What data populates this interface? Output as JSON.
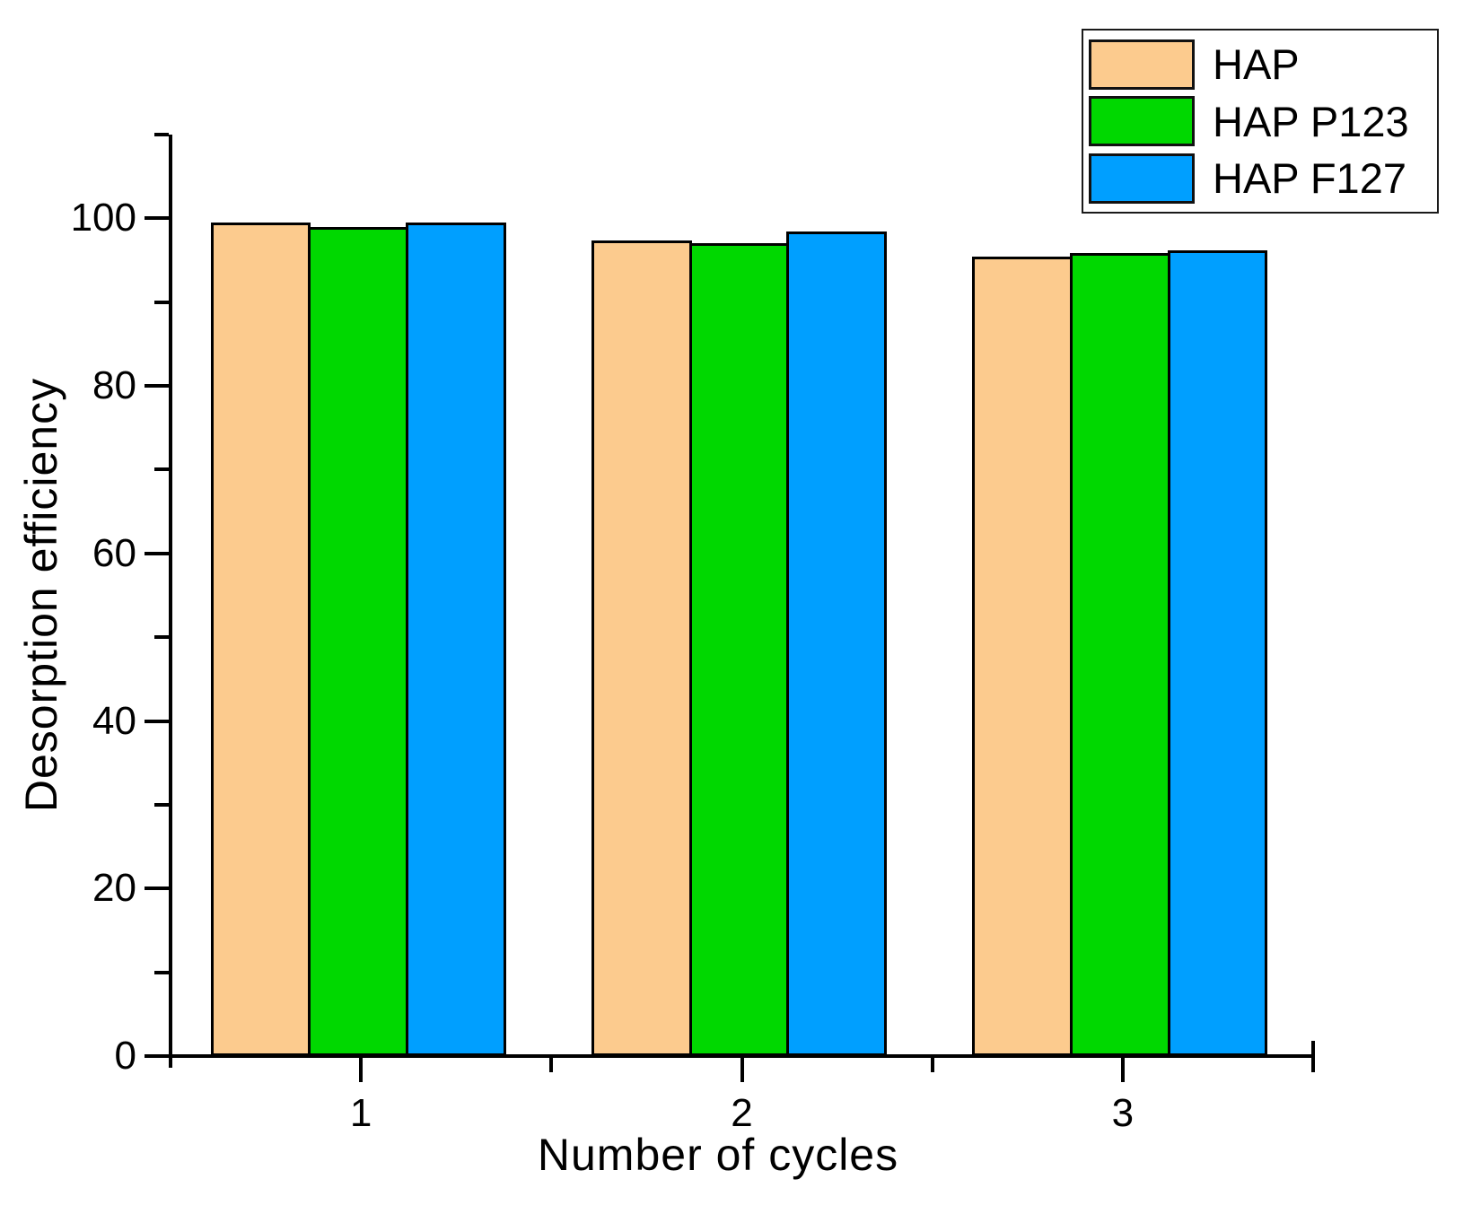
{
  "figure": {
    "background": "#ffffff",
    "axis_color": "#000000",
    "text_color": "#000000"
  },
  "chart_data": {
    "type": "bar",
    "title": "",
    "xlabel": "Number of cycles",
    "ylabel": "Desorption efficiency",
    "categories": [
      "1",
      "2",
      "3"
    ],
    "series": [
      {
        "name": "HAP",
        "color": "#FCCB8E",
        "values": [
          99.5,
          97.4,
          95.4
        ]
      },
      {
        "name": "HAP P123",
        "color": "#00D800",
        "values": [
          99.0,
          97.0,
          95.9
        ]
      },
      {
        "name": "HAP F127",
        "color": "#009FFF",
        "values": [
          99.5,
          98.4,
          96.2
        ]
      }
    ],
    "ylim": [
      0,
      110
    ],
    "xlim": [
      0.5,
      3.5
    ],
    "y_major_ticks": [
      0,
      20,
      40,
      60,
      80,
      100
    ],
    "y_tick_labels": [
      "0",
      "20",
      "40",
      "60",
      "80",
      "100"
    ],
    "y_minor_ticks": [
      10,
      30,
      50,
      70,
      90,
      110
    ],
    "x_major_ticks": [
      1,
      2,
      3
    ],
    "x_minor_ticks": [
      1.5,
      2.5,
      3.5
    ],
    "grid": false,
    "legend_position": "top-right",
    "bar_border_color": "#000000",
    "bar_width_units": 0.263
  }
}
